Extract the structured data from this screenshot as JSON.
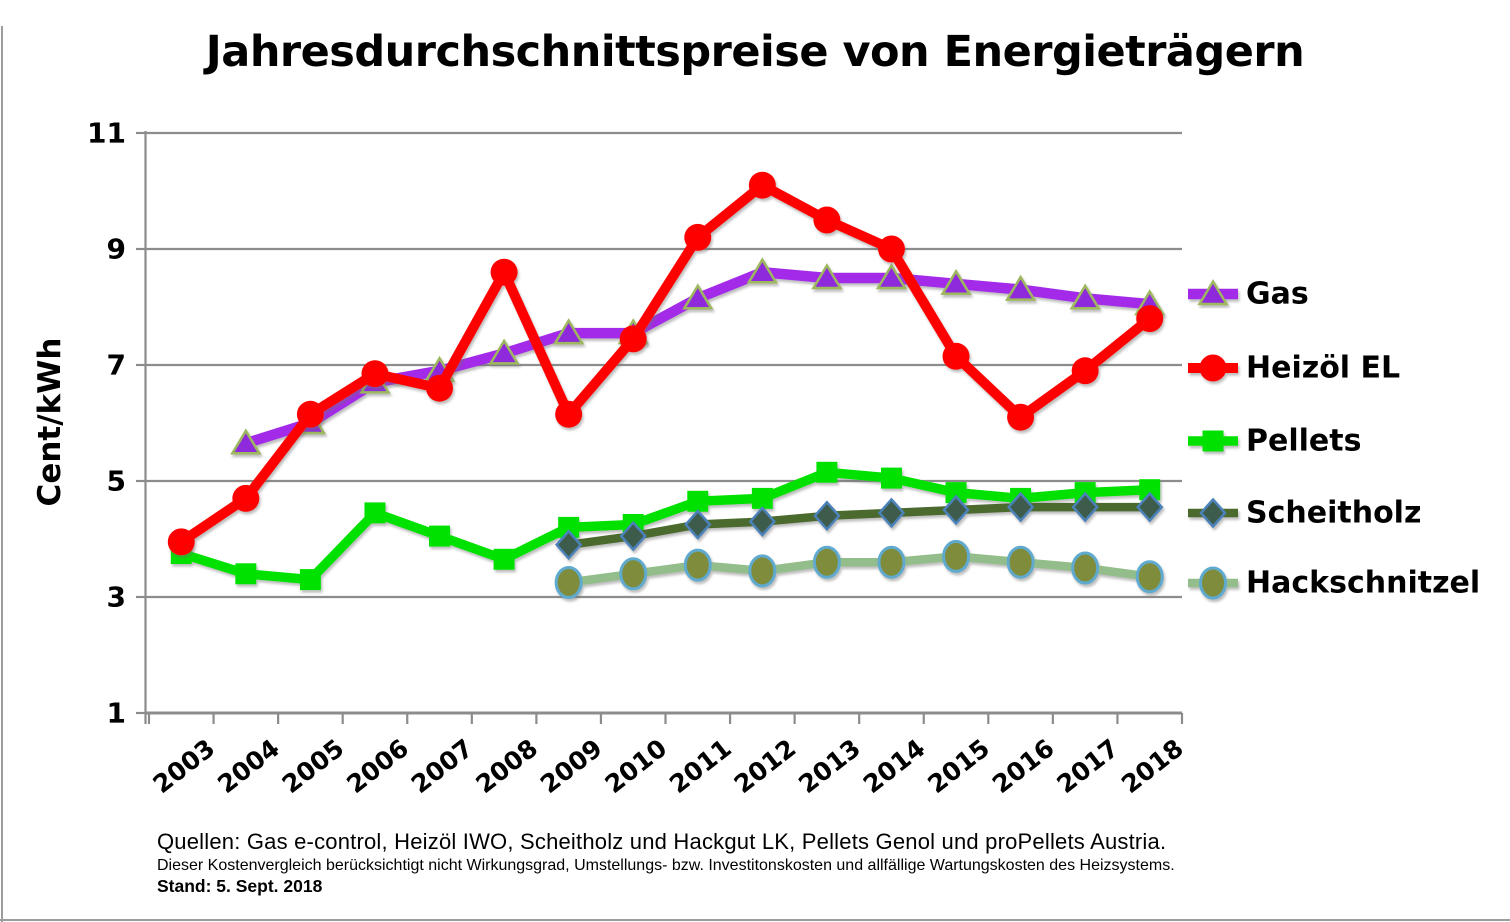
{
  "page": {
    "title": "Jahresdurchschnittspreise von Energieträgern",
    "footer": {
      "sources": "Quellen: Gas e-control, Heizöl IWO, Scheitholz und Hackgut LK, Pellets Genol und proPellets Austria.",
      "disclaimer": "Dieser Kostenvergleich berücksichtigt nicht Wirkungsgrad, Umstellungs- bzw. Investitonskosten und allfällige Wartungskosten des Heizsystems.",
      "stand": "Stand: 5. Sept. 2018"
    }
  },
  "chart_data": {
    "type": "line",
    "title": "Jahresdurchschnittspreise von Energieträgern",
    "xlabel": "",
    "ylabel": "Cent/kWh",
    "ylim": [
      1,
      11
    ],
    "yticks": [
      1,
      3,
      5,
      7,
      9,
      11
    ],
    "grid": "horizontal-major",
    "gridline_color": "#8C8C8C",
    "legend_position": "right",
    "x_tick_rotation": -38,
    "categories": [
      "2003",
      "2004",
      "2005",
      "2006",
      "2007",
      "2008",
      "2009",
      "2010",
      "2011",
      "2012",
      "2013",
      "2014",
      "2015",
      "2016",
      "2017",
      "2018"
    ],
    "series": [
      {
        "name": "Gas",
        "marker": "triangle",
        "line_color": "#A32CE8",
        "marker_fill": "#8E2ADB",
        "marker_stroke": "#9DB85E",
        "values": [
          null,
          5.65,
          6.0,
          6.7,
          6.9,
          7.2,
          7.55,
          7.55,
          8.15,
          8.6,
          8.5,
          8.5,
          8.4,
          8.3,
          8.15,
          8.05
        ]
      },
      {
        "name": "Heizöl EL",
        "marker": "circle",
        "line_color": "#FE0000",
        "marker_fill": "#FE0000",
        "marker_stroke": "none",
        "values": [
          3.95,
          4.7,
          6.15,
          6.85,
          6.6,
          8.6,
          6.15,
          7.45,
          9.2,
          10.1,
          9.5,
          9.0,
          7.15,
          6.1,
          6.9,
          7.8
        ]
      },
      {
        "name": "Pellets",
        "marker": "square",
        "line_color": "#00E100",
        "marker_fill": "#00E100",
        "marker_stroke": "none",
        "values": [
          3.75,
          3.4,
          3.3,
          4.45,
          4.05,
          3.65,
          4.2,
          4.25,
          4.65,
          4.7,
          5.15,
          5.05,
          4.8,
          4.7,
          4.8,
          4.85
        ]
      },
      {
        "name": "Scheitholz",
        "marker": "diamond",
        "line_color": "#4C6A2E",
        "marker_fill": "#3E5C4B",
        "marker_stroke": "#4C82BA",
        "values": [
          null,
          null,
          null,
          null,
          null,
          null,
          3.9,
          4.05,
          4.25,
          4.3,
          4.4,
          4.45,
          4.5,
          4.55,
          4.55,
          4.55
        ]
      },
      {
        "name": "Hackschnitzel",
        "marker": "ellipse",
        "line_color": "#93BD8A",
        "marker_fill": "#7E8C3B",
        "marker_stroke": "#5FAACE",
        "values": [
          null,
          null,
          null,
          null,
          null,
          null,
          3.25,
          3.4,
          3.55,
          3.45,
          3.6,
          3.6,
          3.7,
          3.6,
          3.5,
          3.35
        ]
      }
    ]
  }
}
